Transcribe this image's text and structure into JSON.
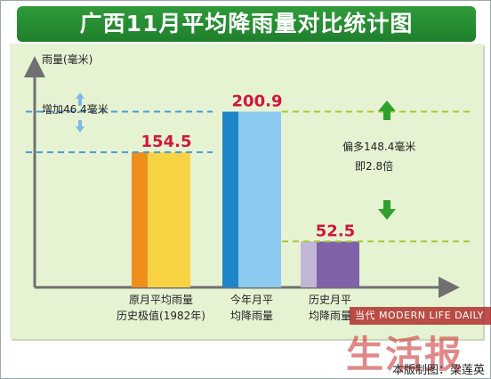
{
  "title": "广西11月平均降雨量对比统计图",
  "credit": "本版制图：梁莲英",
  "watermark": {
    "small": "当代 MODERN LIFE DAILY",
    "big": "生活报"
  },
  "colors": {
    "title_bg": "#2a8f35",
    "panel_bg": "#e6f3d3",
    "value_text": "#d4143c",
    "guide_blue": "#4a9bd6",
    "guide_green": "#a8c932",
    "arrow_green": "#2ea02e",
    "arrow_blue": "#7fb7e6",
    "axis": "#707070"
  },
  "chart_data": {
    "type": "bar",
    "ylabel": "雨量(毫米)",
    "ylim": [
      0,
      230
    ],
    "categories": [
      [
        "原月平均雨量",
        "历史极值(1982年)"
      ],
      [
        "今年月平",
        "均降雨量"
      ],
      [
        "历史月平",
        "均降雨量"
      ]
    ],
    "values": [
      154.5,
      200.9,
      52.5
    ],
    "value_labels": [
      "154.5",
      "200.9",
      "52.5"
    ],
    "bar_colors": [
      {
        "side": "#ef8f1b",
        "face": "#f7d344"
      },
      {
        "side": "#1f86c8",
        "face": "#8ccaf0"
      },
      {
        "side": "#c2b6d6",
        "face": "#7f62a8"
      }
    ],
    "annotations": {
      "increase": "增加46.4毫米",
      "more_line1": "偏多148.4毫米",
      "more_line2": "即2.8倍"
    }
  }
}
